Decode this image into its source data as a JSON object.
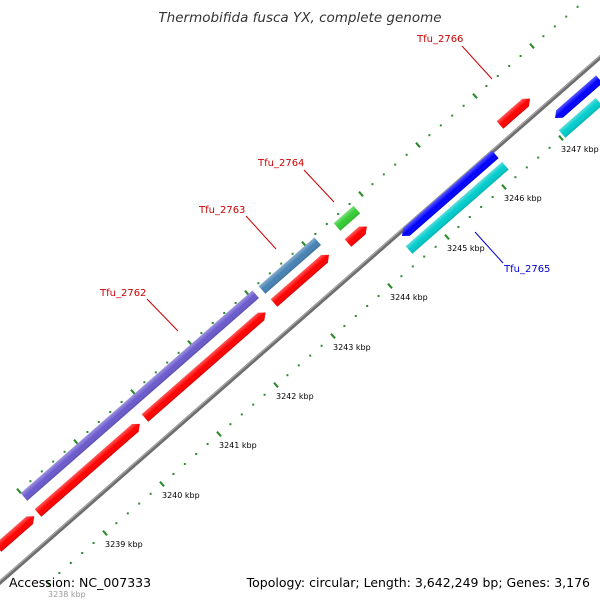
{
  "title": "Thermobifida fusca YX, complete genome",
  "accession_text": "Accession: NC_007333",
  "summary_text": "Topology: circular; Length: 3,642,249 bp; Genes: 3,176",
  "colors": {
    "backbone": "#808080",
    "minor_tick": "#2e8b2e",
    "major_tick": "#2e8b2e",
    "tick_label": "#000000",
    "gene_label_red": "#cc0000",
    "gene_label_blue": "#0000cc",
    "leader_red": "#cc0000",
    "leader_blue": "#0000cc"
  },
  "scale_labels": [
    "3238 kbp",
    "3239 kbp",
    "3240 kbp",
    "3241 kbp",
    "3242 kbp",
    "3243 kbp",
    "3244 kbp",
    "3245 kbp",
    "3246 kbp",
    "3247 kbp"
  ],
  "gene_labels": [
    {
      "text": "Tfu_2762",
      "color": "#cc0000"
    },
    {
      "text": "Tfu_2763",
      "color": "#cc0000"
    },
    {
      "text": "Tfu_2764",
      "color": "#cc0000"
    },
    {
      "text": "Tfu_2765",
      "color": "#0000cc"
    },
    {
      "text": "Tfu_2766",
      "color": "#cc0000"
    }
  ],
  "features": [
    {
      "type": "CDS",
      "strand": "+",
      "color": "#ff0000"
    },
    {
      "type": "CDS",
      "strand": "+",
      "color": "#ff0000"
    },
    {
      "type": "CDS",
      "strand": "+",
      "color": "#ff0000"
    },
    {
      "type": "CDS",
      "strand": "+",
      "color": "#ff0000"
    },
    {
      "type": "CDS",
      "strand": "+",
      "color": "#ff0000"
    },
    {
      "type": "CDS",
      "strand": "+",
      "color": "#ff0000"
    },
    {
      "type": "CDS",
      "strand": "-",
      "color": "#0000ff"
    },
    {
      "type": "CDS",
      "strand": "-",
      "color": "#0000ff"
    },
    {
      "type": "gene",
      "strand": "",
      "color": "#6a5acd"
    },
    {
      "type": "gene",
      "strand": "",
      "color": "#4682b4"
    },
    {
      "type": "gene",
      "strand": "",
      "color": "#33cc33"
    },
    {
      "type": "gene",
      "strand": "",
      "color": "#00cccc"
    },
    {
      "type": "gene",
      "strand": "",
      "color": "#00cccc"
    }
  ]
}
